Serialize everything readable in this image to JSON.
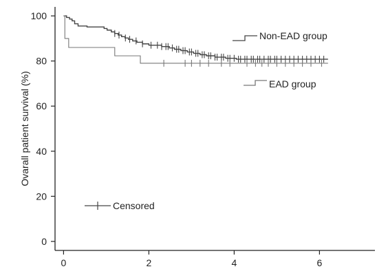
{
  "chart_data": {
    "type": "line",
    "title": "",
    "xlabel": "",
    "ylabel": "Ovarall patient survival (%)",
    "xlim": [
      -0.2,
      7.3
    ],
    "ylim": [
      -4,
      104
    ],
    "x_ticks": [
      "0",
      "2",
      "4",
      "6"
    ],
    "y_ticks": [
      "0",
      "20",
      "40",
      "60",
      "80",
      "100"
    ],
    "grid": false,
    "series": [
      {
        "name": "Non-EAD group",
        "color": "#444444",
        "step": [
          [
            0,
            100
          ],
          [
            0.07,
            99.3
          ],
          [
            0.14,
            98.6
          ],
          [
            0.2,
            97.8
          ],
          [
            0.26,
            96.5
          ],
          [
            0.34,
            95.5
          ],
          [
            0.55,
            95.1
          ],
          [
            0.95,
            94.4
          ],
          [
            1.02,
            93.7
          ],
          [
            1.12,
            92.9
          ],
          [
            1.2,
            92.2
          ],
          [
            1.28,
            91.5
          ],
          [
            1.36,
            90.8
          ],
          [
            1.44,
            90.2
          ],
          [
            1.52,
            89.6
          ],
          [
            1.62,
            88.9
          ],
          [
            1.72,
            88.3
          ],
          [
            1.85,
            87.6
          ],
          [
            2.0,
            87.0
          ],
          [
            2.3,
            86.4
          ],
          [
            2.48,
            85.8
          ],
          [
            2.6,
            85.2
          ],
          [
            2.75,
            84.6
          ],
          [
            2.9,
            84.0
          ],
          [
            3.05,
            83.4
          ],
          [
            3.2,
            82.8
          ],
          [
            3.35,
            82.3
          ],
          [
            3.55,
            81.7
          ],
          [
            3.8,
            81.2
          ],
          [
            4.05,
            80.8
          ],
          [
            6.2,
            80.8
          ]
        ],
        "censored_x": [
          1.2,
          1.3,
          1.45,
          1.55,
          1.7,
          1.85,
          2.05,
          2.2,
          2.3,
          2.4,
          2.45,
          2.55,
          2.65,
          2.7,
          2.8,
          2.85,
          2.95,
          3.0,
          3.1,
          3.15,
          3.25,
          3.3,
          3.4,
          3.45,
          3.55,
          3.6,
          3.7,
          3.75,
          3.85,
          3.9,
          4.0,
          4.1,
          4.15,
          4.25,
          4.3,
          4.4,
          4.45,
          4.55,
          4.6,
          4.7,
          4.8,
          4.85,
          4.95,
          5.0,
          5.1,
          5.2,
          5.3,
          5.4,
          5.5,
          5.6,
          5.7,
          5.8,
          5.9,
          6.0,
          6.1
        ]
      },
      {
        "name": "EAD group",
        "color": "#777777",
        "step": [
          [
            0,
            100
          ],
          [
            0.03,
            90.0
          ],
          [
            0.12,
            86.0
          ],
          [
            1.2,
            82.3
          ],
          [
            1.8,
            79.0
          ],
          [
            6.2,
            79.0
          ]
        ],
        "censored_x": [
          2.35,
          2.85,
          3.0,
          3.2,
          3.4,
          3.7,
          3.9,
          4.3,
          4.5,
          4.65,
          4.8,
          5.0,
          5.2,
          5.4,
          5.6,
          5.8,
          6.05
        ]
      }
    ],
    "legend": {
      "entries": [
        "Non-EAD group",
        "EAD group"
      ],
      "censored_label": "Censored"
    }
  }
}
